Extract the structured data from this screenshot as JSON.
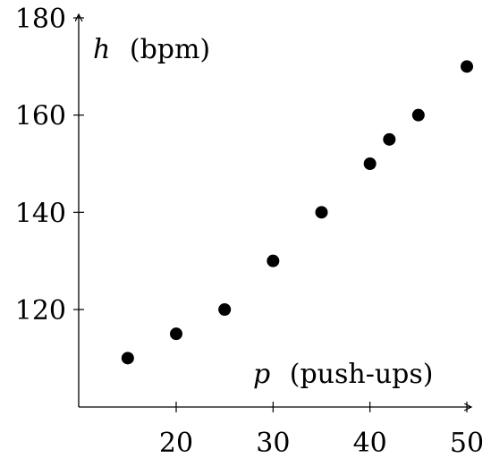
{
  "chart_data": {
    "type": "scatter",
    "title": "",
    "xlabel_var": "p",
    "xlabel_unit": "(push-ups)",
    "ylabel_var": "h",
    "ylabel_unit": "(bpm)",
    "xlim": [
      10,
      50
    ],
    "ylim": [
      100,
      180
    ],
    "x_ticks": [
      20,
      30,
      40,
      50
    ],
    "y_ticks": [
      120,
      140,
      160,
      180
    ],
    "grid": false,
    "points": [
      {
        "x": 15,
        "y": 110
      },
      {
        "x": 20,
        "y": 115
      },
      {
        "x": 25,
        "y": 120
      },
      {
        "x": 30,
        "y": 130
      },
      {
        "x": 35,
        "y": 140
      },
      {
        "x": 40,
        "y": 150
      },
      {
        "x": 42,
        "y": 155
      },
      {
        "x": 45,
        "y": 160
      },
      {
        "x": 50,
        "y": 170
      }
    ],
    "marker_color": "#000000"
  }
}
